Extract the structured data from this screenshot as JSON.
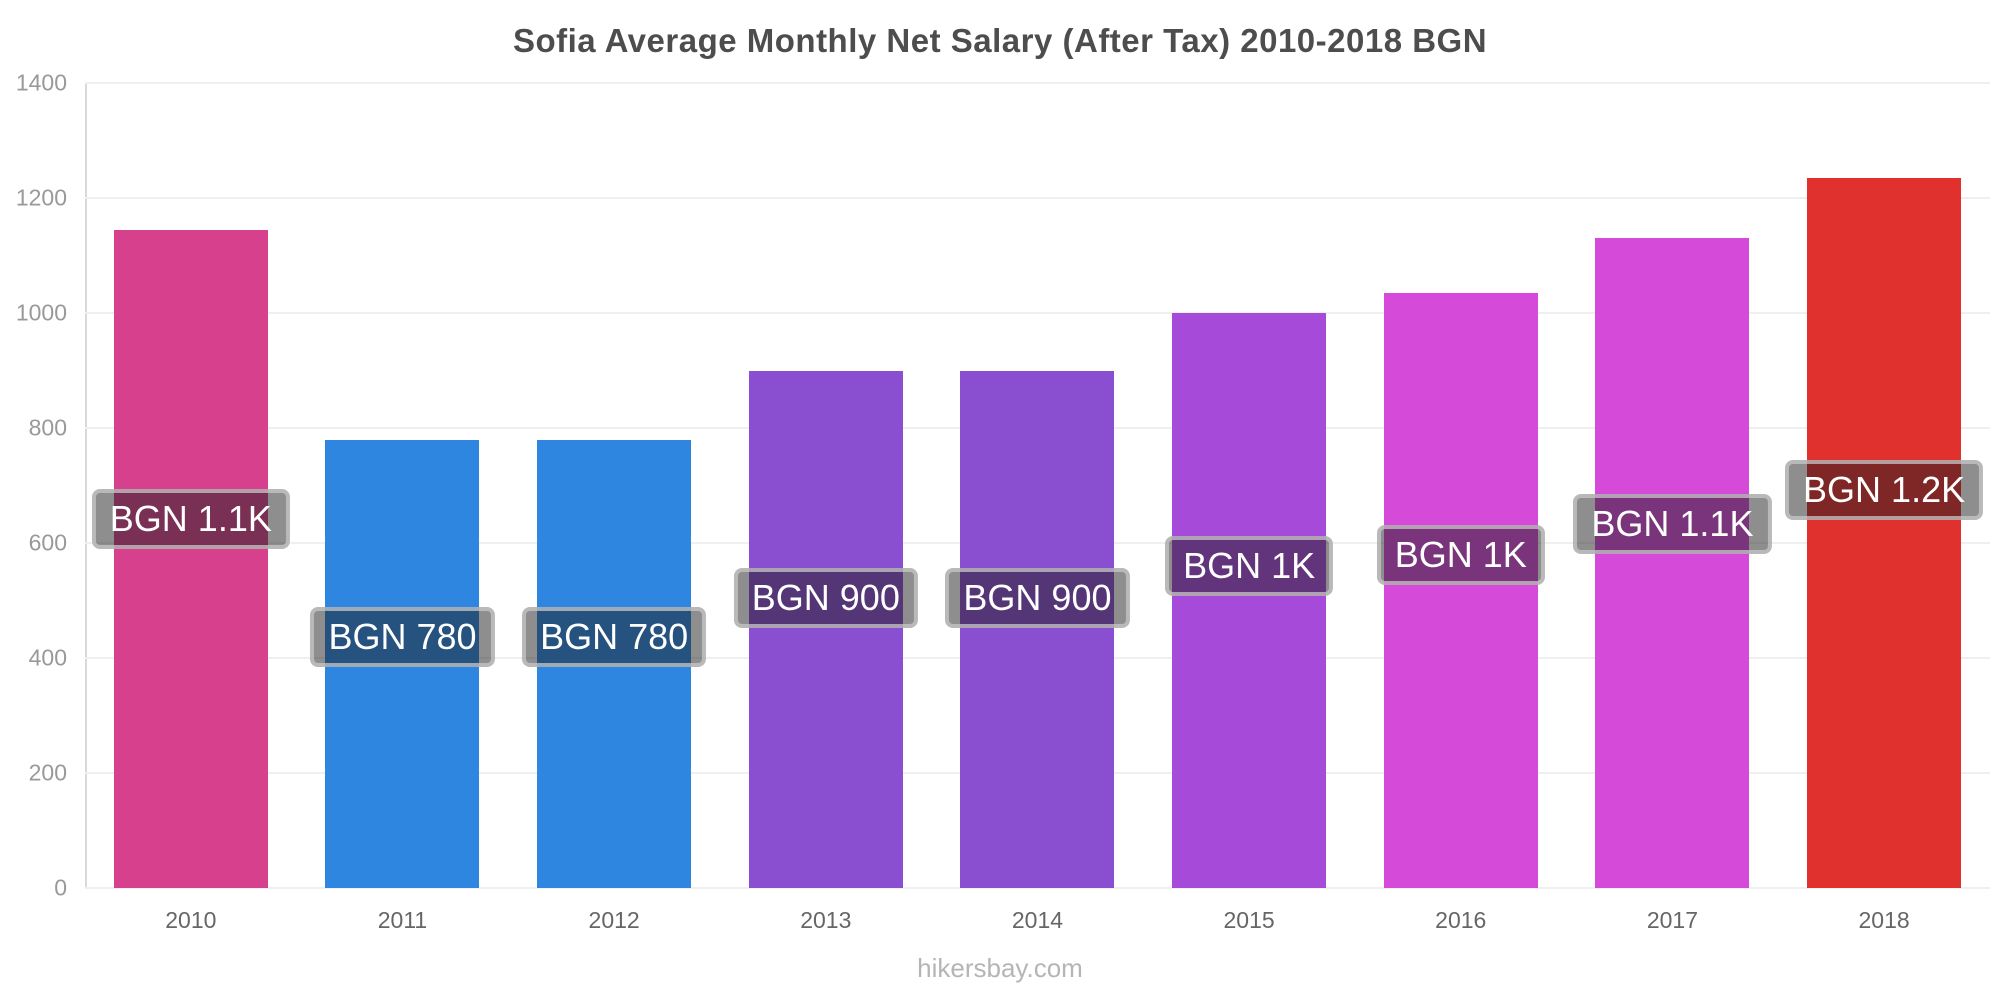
{
  "title": "Sofia Average Monthly Net Salary (After Tax) 2010-2018 BGN",
  "footer": "hikersbay.com",
  "chart_data": {
    "type": "bar",
    "title": "Sofia Average Monthly Net Salary (After Tax) 2010-2018 BGN",
    "categories": [
      "2010",
      "2011",
      "2012",
      "2013",
      "2014",
      "2015",
      "2016",
      "2017",
      "2018"
    ],
    "values": [
      1145,
      780,
      780,
      900,
      900,
      1000,
      1035,
      1130,
      1235
    ],
    "bar_labels": [
      "BGN 1.1K",
      "BGN 780",
      "BGN 780",
      "BGN 900",
      "BGN 900",
      "BGN 1K",
      "BGN 1K",
      "BGN 1.1K",
      "BGN 1.2K"
    ],
    "bar_colors": [
      "#d6408c",
      "#2e86e0",
      "#2e86e0",
      "#8a4fd0",
      "#8a4fd0",
      "#a64ad9",
      "#d64ad9",
      "#d64ad9",
      "#e0312e"
    ],
    "xlabel": "",
    "ylabel": "",
    "ylim": [
      0,
      1400
    ],
    "yticks": [
      0,
      200,
      400,
      600,
      800,
      1000,
      1200,
      1400
    ],
    "grid": true,
    "legend": false,
    "label_text_color": "#ffffff",
    "axis_tick_color": "#999999",
    "x_tick_color": "#666666"
  }
}
